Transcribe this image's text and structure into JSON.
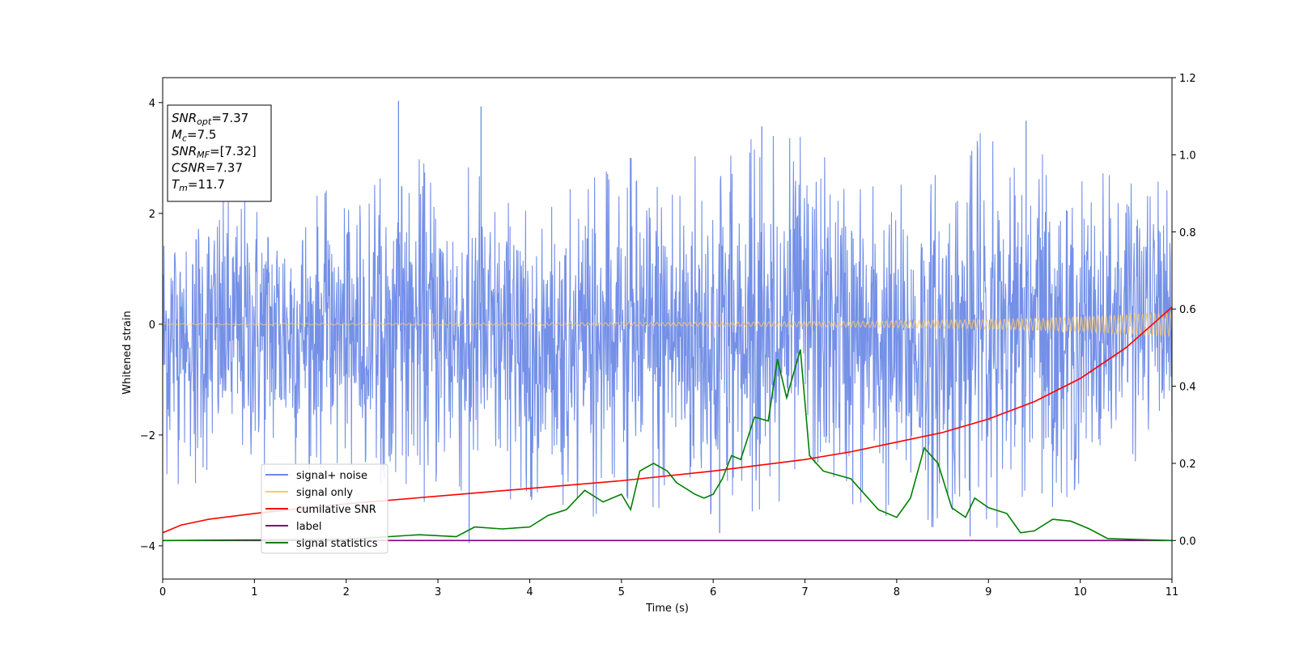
{
  "chart_data": {
    "type": "line",
    "xlabel": "Time (s)",
    "ylabel": "Whitened strain",
    "xlim": [
      0,
      11
    ],
    "ylim": [
      -4.6,
      4.45
    ],
    "y2lim": [
      -0.1,
      1.2
    ],
    "x_ticks": [
      0,
      1,
      2,
      3,
      4,
      5,
      6,
      7,
      8,
      9,
      10,
      11
    ],
    "y_ticks": [
      -4,
      -2,
      0,
      2,
      4
    ],
    "y2_ticks": [
      0.0,
      0.2,
      0.4,
      0.6,
      0.8,
      1.0,
      1.2
    ],
    "x_tick_labels": [
      "0",
      "1",
      "2",
      "3",
      "4",
      "5",
      "6",
      "7",
      "8",
      "9",
      "10",
      "11"
    ],
    "y_tick_labels": [
      "−4",
      "−2",
      "0",
      "2",
      "4"
    ],
    "y2_tick_labels": [
      "0.0",
      "0.2",
      "0.4",
      "0.6",
      "0.8",
      "1.0",
      "1.2"
    ],
    "grid": false,
    "legend_position": "lower-left",
    "series": [
      {
        "name": "signal+ noise",
        "color": "#6d8ae6",
        "axis": "left",
        "kind": "noise-band",
        "x": [
          0,
          1,
          2,
          3,
          4,
          5,
          6,
          7,
          8,
          9,
          10,
          11
        ],
        "upper_envelope": [
          2.6,
          2.6,
          2.4,
          3.2,
          2.3,
          3.0,
          3.5,
          3.4,
          2.6,
          3.6,
          2.8,
          2.7
        ],
        "lower_envelope": [
          -3.1,
          -2.9,
          -2.6,
          -3.4,
          -3.3,
          -3.7,
          -3.8,
          -3.2,
          -3.7,
          -3.8,
          -3.2,
          -2.0
        ],
        "peak_x": [
          2.57,
          3.47,
          6.53,
          9.41
        ],
        "peak_y": [
          4.03,
          3.93,
          3.57,
          3.67
        ],
        "trough_x": [
          3.34,
          6.07,
          8.8
        ],
        "trough_y": [
          -3.95,
          -3.77,
          -3.83
        ]
      },
      {
        "name": "signal only",
        "color": "#ffc966",
        "axis": "left",
        "x": [
          0,
          1,
          2,
          3,
          4,
          5,
          6,
          7,
          8,
          9,
          10,
          11
        ],
        "amplitude": [
          0.01,
          0.012,
          0.015,
          0.018,
          0.022,
          0.028,
          0.035,
          0.045,
          0.06,
          0.085,
          0.13,
          0.22
        ]
      },
      {
        "name": "cumilative SNR",
        "color": "#ff0000",
        "axis": "right",
        "x": [
          0,
          0.2,
          0.5,
          1,
          2,
          3,
          4,
          5,
          6,
          7,
          7.5,
          8,
          8.5,
          9,
          9.5,
          10,
          10.5,
          11
        ],
        "y": [
          0.02,
          0.04,
          0.055,
          0.07,
          0.095,
          0.115,
          0.135,
          0.155,
          0.18,
          0.21,
          0.23,
          0.255,
          0.28,
          0.315,
          0.36,
          0.42,
          0.5,
          0.605
        ]
      },
      {
        "name": "label",
        "color": "#800080",
        "axis": "right",
        "x": [
          0,
          11
        ],
        "y": [
          0,
          0
        ]
      },
      {
        "name": "signal statistics",
        "color": "#008000",
        "axis": "right",
        "x": [
          0,
          2,
          2.8,
          3.2,
          3.4,
          3.7,
          4.0,
          4.2,
          4.4,
          4.6,
          4.8,
          5.0,
          5.1,
          5.2,
          5.35,
          5.5,
          5.6,
          5.8,
          5.9,
          6.0,
          6.1,
          6.2,
          6.3,
          6.45,
          6.6,
          6.7,
          6.8,
          6.95,
          7.05,
          7.2,
          7.5,
          7.8,
          8.0,
          8.15,
          8.3,
          8.45,
          8.6,
          8.75,
          8.85,
          9.0,
          9.2,
          9.35,
          9.5,
          9.7,
          9.9,
          10.1,
          10.3,
          11
        ],
        "y": [
          0,
          0.003,
          0.015,
          0.01,
          0.035,
          0.03,
          0.035,
          0.065,
          0.08,
          0.13,
          0.1,
          0.12,
          0.08,
          0.18,
          0.2,
          0.18,
          0.15,
          0.12,
          0.11,
          0.12,
          0.16,
          0.22,
          0.21,
          0.32,
          0.31,
          0.47,
          0.37,
          0.495,
          0.22,
          0.18,
          0.16,
          0.08,
          0.06,
          0.11,
          0.24,
          0.2,
          0.085,
          0.06,
          0.11,
          0.085,
          0.07,
          0.02,
          0.025,
          0.055,
          0.05,
          0.03,
          0.005,
          0
        ]
      }
    ]
  },
  "info_box": [
    {
      "base": "SNR",
      "sub": "opt",
      "value": "=7.37"
    },
    {
      "base": "M",
      "sub": "c",
      "value": "=7.5"
    },
    {
      "base": "SNR",
      "sub": "MF",
      "value": "=[7.32]"
    },
    {
      "base": "CSNR",
      "sub": "",
      "value": "=7.37"
    },
    {
      "base": "T",
      "sub": "m",
      "value": "=11.7"
    }
  ]
}
